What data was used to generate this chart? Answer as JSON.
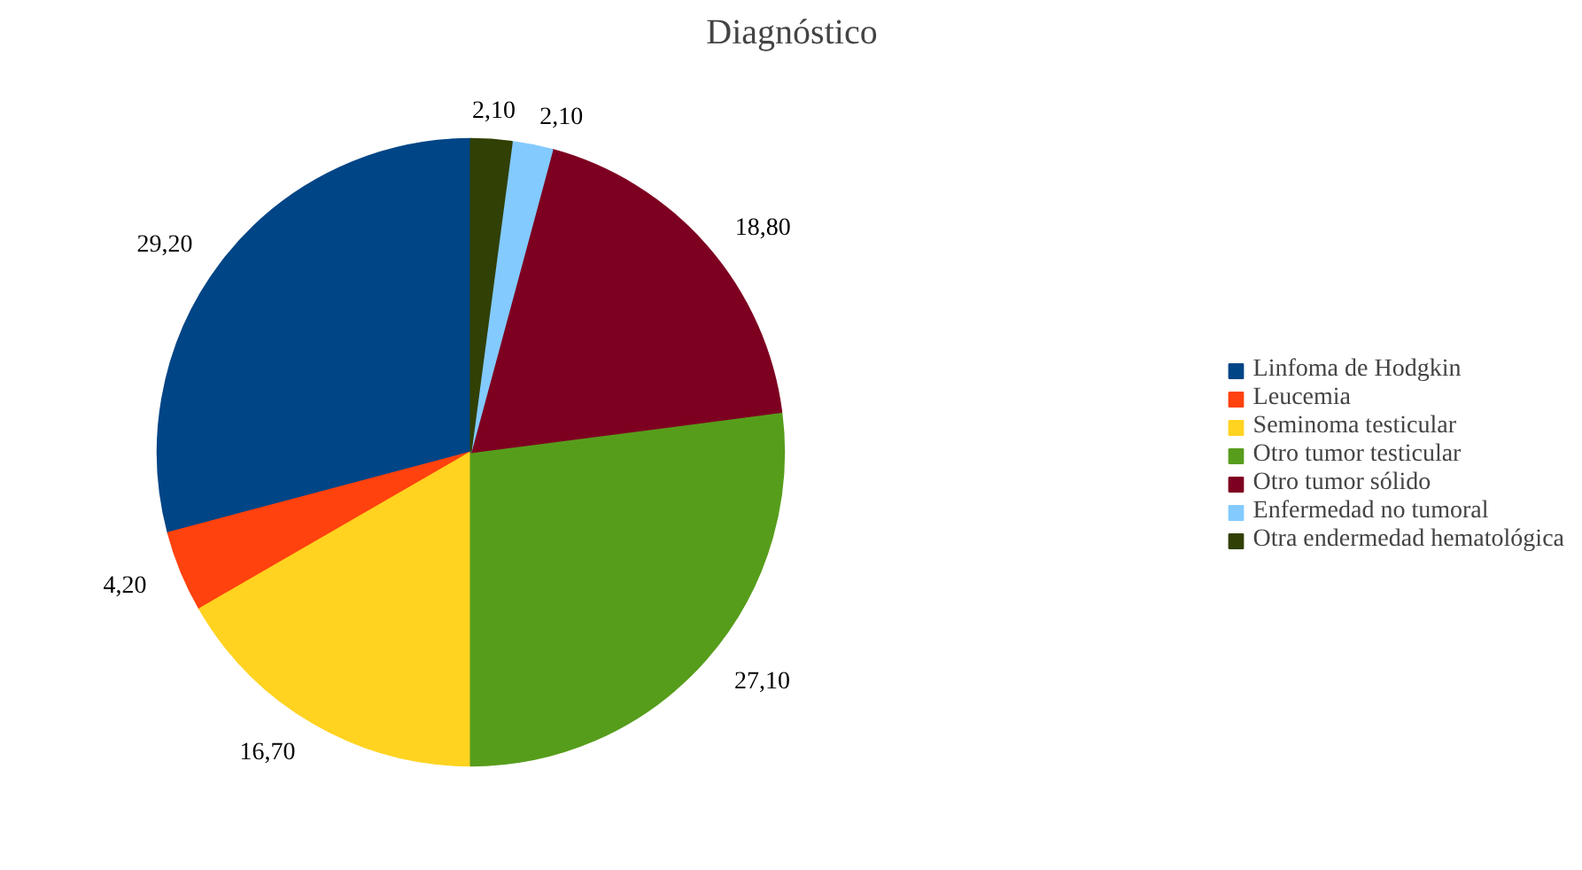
{
  "chart_data": {
    "type": "pie",
    "title": "Diagnóstico",
    "categories": [
      "Linfoma de Hodgkin",
      "Leucemia",
      "Seminoma testicular",
      "Otro tumor testicular",
      "Otro tumor sólido",
      "Enfermedad no tumoral",
      "Otra endermedad hematológica"
    ],
    "values": [
      29.2,
      4.2,
      16.7,
      27.1,
      18.8,
      2.1,
      2.1
    ],
    "colors": [
      "#004586",
      "#ff420e",
      "#ffd320",
      "#579d1c",
      "#7e0021",
      "#83caff",
      "#314004"
    ],
    "value_labels": [
      "29,20",
      "4,20",
      "16,70",
      "27,10",
      "18,80",
      "2,10",
      "2,10"
    ],
    "legend": "right"
  }
}
